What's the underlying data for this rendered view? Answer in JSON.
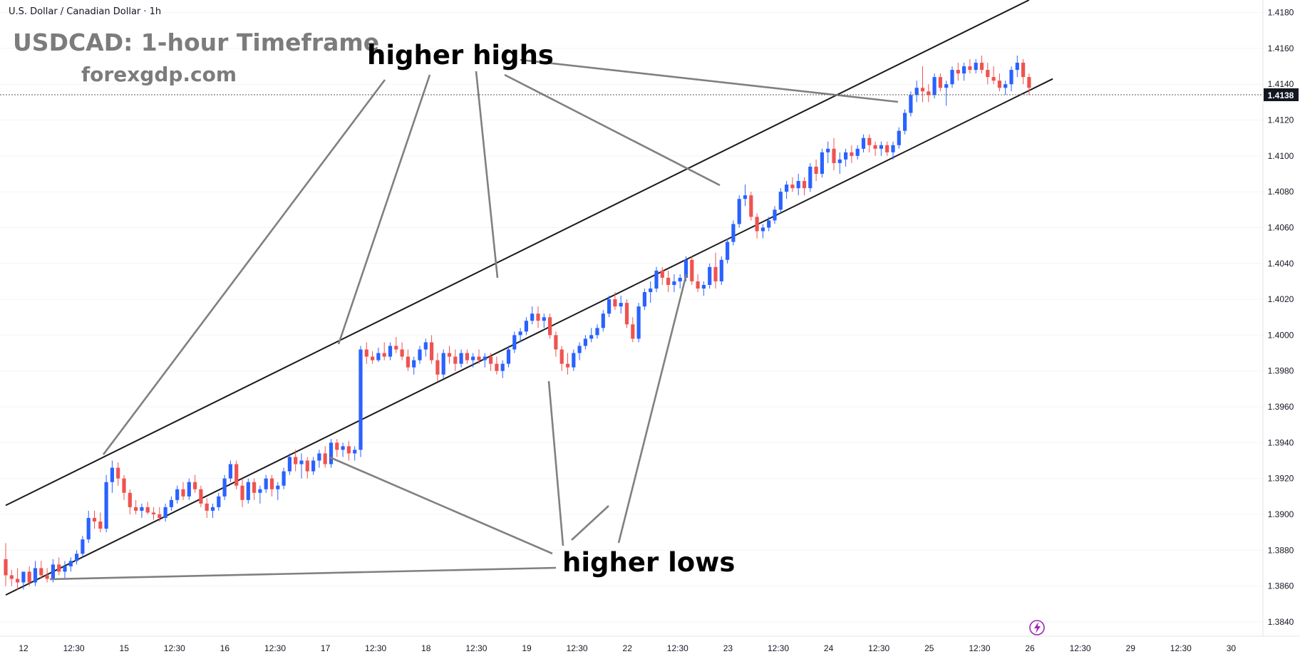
{
  "header": {
    "symbol_title": "U.S. Dollar / Canadian Dollar · 1h",
    "main_title": "USDCAD: 1-hour Timeframe",
    "website": "forexgdp.com"
  },
  "annotations": {
    "higher_highs": "higher highs",
    "higher_lows": "higher lows"
  },
  "chart_data": {
    "type": "candlestick",
    "y_axis_ticks": [
      "1.4180",
      "1.4160",
      "1.4140",
      "1.4120",
      "1.4100",
      "1.4080",
      "1.4060",
      "1.4040",
      "1.4020",
      "1.4000",
      "1.3980",
      "1.3960",
      "1.3940",
      "1.3920",
      "1.3900",
      "1.3880",
      "1.3860",
      "1.3840"
    ],
    "ylim": [
      1.3832,
      1.4187
    ],
    "current_price": "1.4138",
    "x_axis_labels": [
      "12",
      "12:30",
      "15",
      "12:30",
      "16",
      "12:30",
      "17",
      "12:30",
      "18",
      "12:30",
      "19",
      "12:30",
      "22",
      "12:30",
      "23",
      "12:30",
      "24",
      "12:30",
      "25",
      "12:30",
      "26",
      "12:30",
      "29",
      "12:30",
      "30"
    ],
    "channel_upper": [
      [
        0.0,
        1.3905
      ],
      [
        86.5,
        1.4187
      ]
    ],
    "channel_lower": [
      [
        0.0,
        1.3855
      ],
      [
        88.5,
        1.4143
      ]
    ],
    "colors": {
      "up": "#2962ff",
      "down": "#ef5350",
      "channel": "#1a1a1a",
      "pointer": "#808080",
      "price_label_bg": "#131722"
    },
    "candles": [
      [
        0.0,
        1.3875,
        1.3884,
        1.386,
        1.3866
      ],
      [
        0.5,
        1.3866,
        1.3869,
        1.386,
        1.3864
      ],
      [
        1.0,
        1.3864,
        1.387,
        1.3858,
        1.3862
      ],
      [
        1.5,
        1.3862,
        1.3866,
        1.3858,
        1.3868
      ],
      [
        2.0,
        1.3868,
        1.3871,
        1.386,
        1.3862
      ],
      [
        2.5,
        1.3862,
        1.3874,
        1.386,
        1.387
      ],
      [
        3.0,
        1.387,
        1.3874,
        1.3864,
        1.3866
      ],
      [
        3.5,
        1.3866,
        1.387,
        1.3862,
        1.3864
      ],
      [
        4.0,
        1.3864,
        1.3875,
        1.3862,
        1.3872
      ],
      [
        4.5,
        1.3872,
        1.3876,
        1.3866,
        1.3868
      ],
      [
        5.0,
        1.3868,
        1.3874,
        1.3864,
        1.3871
      ],
      [
        5.5,
        1.3871,
        1.3876,
        1.3868,
        1.3874
      ],
      [
        6.0,
        1.3874,
        1.388,
        1.3872,
        1.3878
      ],
      [
        6.5,
        1.3878,
        1.3888,
        1.3876,
        1.3886
      ],
      [
        7.0,
        1.3886,
        1.3902,
        1.3884,
        1.3898
      ],
      [
        7.5,
        1.3898,
        1.3902,
        1.3892,
        1.3896
      ],
      [
        8.0,
        1.3896,
        1.3901,
        1.389,
        1.3892
      ],
      [
        8.5,
        1.3892,
        1.3922,
        1.389,
        1.3918
      ],
      [
        9.0,
        1.3918,
        1.393,
        1.3912,
        1.3926
      ],
      [
        9.5,
        1.3926,
        1.3929,
        1.3916,
        1.392
      ],
      [
        10.0,
        1.392,
        1.3922,
        1.3908,
        1.3912
      ],
      [
        10.5,
        1.3912,
        1.3914,
        1.39,
        1.3904
      ],
      [
        11.0,
        1.3904,
        1.3908,
        1.39,
        1.3902
      ],
      [
        11.5,
        1.3902,
        1.3906,
        1.3898,
        1.3904
      ],
      [
        12.0,
        1.3904,
        1.3907,
        1.39,
        1.3901
      ],
      [
        12.5,
        1.3901,
        1.3904,
        1.3897,
        1.39
      ],
      [
        13.0,
        1.39,
        1.3904,
        1.3896,
        1.3898
      ],
      [
        13.5,
        1.3898,
        1.3906,
        1.3896,
        1.3904
      ],
      [
        14.0,
        1.3904,
        1.391,
        1.3902,
        1.3908
      ],
      [
        14.5,
        1.3908,
        1.3916,
        1.3906,
        1.3914
      ],
      [
        15.0,
        1.3914,
        1.3918,
        1.3908,
        1.391
      ],
      [
        15.5,
        1.391,
        1.392,
        1.3908,
        1.3918
      ],
      [
        16.0,
        1.3918,
        1.3922,
        1.3912,
        1.3914
      ],
      [
        16.5,
        1.3914,
        1.3916,
        1.3904,
        1.3906
      ],
      [
        17.0,
        1.3906,
        1.3909,
        1.3898,
        1.3902
      ],
      [
        17.5,
        1.3902,
        1.3906,
        1.3898,
        1.3904
      ],
      [
        18.0,
        1.3904,
        1.3912,
        1.3902,
        1.391
      ],
      [
        18.5,
        1.391,
        1.3922,
        1.3908,
        1.392
      ],
      [
        19.0,
        1.392,
        1.393,
        1.3918,
        1.3928
      ],
      [
        19.5,
        1.3928,
        1.393,
        1.3914,
        1.3916
      ],
      [
        20.0,
        1.3916,
        1.392,
        1.3904,
        1.3908
      ],
      [
        20.5,
        1.3908,
        1.392,
        1.3906,
        1.3918
      ],
      [
        21.0,
        1.3918,
        1.392,
        1.3908,
        1.3912
      ],
      [
        21.5,
        1.3912,
        1.3916,
        1.3906,
        1.3914
      ],
      [
        22.0,
        1.3914,
        1.3922,
        1.3912,
        1.392
      ],
      [
        22.5,
        1.392,
        1.3922,
        1.391,
        1.3914
      ],
      [
        23.0,
        1.3914,
        1.3918,
        1.3908,
        1.3916
      ],
      [
        23.5,
        1.3916,
        1.3926,
        1.3914,
        1.3924
      ],
      [
        24.0,
        1.3924,
        1.3934,
        1.3922,
        1.3932
      ],
      [
        24.5,
        1.3932,
        1.3936,
        1.3924,
        1.3928
      ],
      [
        25.0,
        1.3928,
        1.3934,
        1.392,
        1.393
      ],
      [
        25.5,
        1.393,
        1.3932,
        1.392,
        1.3924
      ],
      [
        26.0,
        1.3924,
        1.3932,
        1.3922,
        1.393
      ],
      [
        26.5,
        1.393,
        1.3936,
        1.3926,
        1.3934
      ],
      [
        27.0,
        1.3934,
        1.3938,
        1.3926,
        1.3928
      ],
      [
        27.5,
        1.3928,
        1.3942,
        1.3926,
        1.394
      ],
      [
        28.0,
        1.394,
        1.3942,
        1.3932,
        1.3936
      ],
      [
        28.5,
        1.3936,
        1.394,
        1.3932,
        1.3938
      ],
      [
        29.0,
        1.3938,
        1.3941,
        1.393,
        1.3934
      ],
      [
        29.5,
        1.3934,
        1.3938,
        1.393,
        1.3936
      ],
      [
        30.0,
        1.3936,
        1.3994,
        1.3932,
        1.3992
      ],
      [
        30.5,
        1.3992,
        1.3996,
        1.3984,
        1.3988
      ],
      [
        31.0,
        1.3988,
        1.3991,
        1.3984,
        1.3986
      ],
      [
        31.5,
        1.3986,
        1.3993,
        1.3985,
        1.399
      ],
      [
        32.0,
        1.399,
        1.3996,
        1.3986,
        1.3988
      ],
      [
        32.5,
        1.3988,
        1.3996,
        1.3986,
        1.3994
      ],
      [
        33.0,
        1.3994,
        1.3999,
        1.399,
        1.3992
      ],
      [
        33.5,
        1.3992,
        1.3996,
        1.3986,
        1.3988
      ],
      [
        34.0,
        1.3988,
        1.3992,
        1.398,
        1.3982
      ],
      [
        34.5,
        1.3982,
        1.3988,
        1.3978,
        1.3986
      ],
      [
        35.0,
        1.3986,
        1.3994,
        1.3984,
        1.3992
      ],
      [
        35.5,
        1.3992,
        1.3998,
        1.3988,
        1.3996
      ],
      [
        36.0,
        1.3996,
        1.4,
        1.3984,
        1.3986
      ],
      [
        36.5,
        1.3986,
        1.399,
        1.3974,
        1.3978
      ],
      [
        37.0,
        1.3978,
        1.3992,
        1.3976,
        1.399
      ],
      [
        37.5,
        1.399,
        1.3994,
        1.3984,
        1.3988
      ],
      [
        38.0,
        1.3988,
        1.3992,
        1.398,
        1.3984
      ],
      [
        38.5,
        1.3984,
        1.3992,
        1.3982,
        1.399
      ],
      [
        39.0,
        1.399,
        1.3992,
        1.3984,
        1.3986
      ],
      [
        39.5,
        1.3986,
        1.399,
        1.3982,
        1.3988
      ],
      [
        40.0,
        1.3988,
        1.3992,
        1.3984,
        1.3986
      ],
      [
        40.5,
        1.3986,
        1.399,
        1.3982,
        1.3988
      ],
      [
        41.0,
        1.3988,
        1.399,
        1.398,
        1.3984
      ],
      [
        41.5,
        1.3984,
        1.3988,
        1.3978,
        1.398
      ],
      [
        42.0,
        1.398,
        1.3986,
        1.3976,
        1.3984
      ],
      [
        42.5,
        1.3984,
        1.3994,
        1.3982,
        1.3992
      ],
      [
        43.0,
        1.3992,
        1.4002,
        1.399,
        1.4
      ],
      [
        43.5,
        1.4,
        1.4004,
        1.3996,
        1.4002
      ],
      [
        44.0,
        1.4002,
        1.401,
        1.4,
        1.4008
      ],
      [
        44.5,
        1.4008,
        1.4016,
        1.4006,
        1.4012
      ],
      [
        45.0,
        1.4012,
        1.4016,
        1.4004,
        1.4008
      ],
      [
        45.5,
        1.4008,
        1.4012,
        1.4004,
        1.401
      ],
      [
        46.0,
        1.401,
        1.4012,
        1.3998,
        1.4
      ],
      [
        46.5,
        1.4,
        1.4002,
        1.3988,
        1.3992
      ],
      [
        47.0,
        1.3992,
        1.3994,
        1.398,
        1.3984
      ],
      [
        47.5,
        1.3984,
        1.399,
        1.3978,
        1.3982
      ],
      [
        48.0,
        1.3982,
        1.3992,
        1.398,
        1.399
      ],
      [
        48.5,
        1.399,
        1.3996,
        1.3986,
        1.3994
      ],
      [
        49.0,
        1.3994,
        1.4,
        1.3992,
        1.3998
      ],
      [
        49.5,
        1.3998,
        1.4004,
        1.3996,
        1.4
      ],
      [
        50.0,
        1.4,
        1.4006,
        1.3998,
        1.4004
      ],
      [
        50.5,
        1.4004,
        1.4014,
        1.4002,
        1.4012
      ],
      [
        51.0,
        1.4012,
        1.4022,
        1.401,
        1.402
      ],
      [
        51.5,
        1.402,
        1.4024,
        1.4014,
        1.4016
      ],
      [
        52.0,
        1.4016,
        1.4022,
        1.4012,
        1.4018
      ],
      [
        52.5,
        1.4018,
        1.402,
        1.4004,
        1.4006
      ],
      [
        53.0,
        1.4006,
        1.401,
        1.3996,
        1.3998
      ],
      [
        53.5,
        1.3998,
        1.4018,
        1.3996,
        1.4016
      ],
      [
        54.0,
        1.4016,
        1.4026,
        1.4014,
        1.4024
      ],
      [
        54.5,
        1.4024,
        1.403,
        1.4018,
        1.4026
      ],
      [
        55.0,
        1.4026,
        1.4038,
        1.4024,
        1.4036
      ],
      [
        55.5,
        1.4036,
        1.4038,
        1.4028,
        1.4032
      ],
      [
        56.0,
        1.4032,
        1.4036,
        1.4024,
        1.4028
      ],
      [
        56.5,
        1.4028,
        1.4034,
        1.4024,
        1.403
      ],
      [
        57.0,
        1.403,
        1.4034,
        1.4026,
        1.4032
      ],
      [
        57.5,
        1.4032,
        1.4044,
        1.403,
        1.4042
      ],
      [
        58.0,
        1.4042,
        1.4044,
        1.4028,
        1.403
      ],
      [
        58.5,
        1.403,
        1.4034,
        1.4024,
        1.4026
      ],
      [
        59.0,
        1.4026,
        1.403,
        1.4022,
        1.4028
      ],
      [
        59.5,
        1.4028,
        1.404,
        1.4026,
        1.4038
      ],
      [
        60.0,
        1.4038,
        1.4046,
        1.4026,
        1.403
      ],
      [
        60.5,
        1.403,
        1.4044,
        1.4028,
        1.4042
      ],
      [
        61.0,
        1.4042,
        1.4054,
        1.404,
        1.4052
      ],
      [
        61.5,
        1.4052,
        1.4064,
        1.405,
        1.4062
      ],
      [
        62.0,
        1.4062,
        1.4078,
        1.406,
        1.4076
      ],
      [
        62.5,
        1.4076,
        1.4084,
        1.4072,
        1.4078
      ],
      [
        63.0,
        1.4078,
        1.408,
        1.4064,
        1.4066
      ],
      [
        63.5,
        1.4066,
        1.4068,
        1.4054,
        1.4058
      ],
      [
        64.0,
        1.4058,
        1.4062,
        1.4054,
        1.406
      ],
      [
        64.5,
        1.406,
        1.4066,
        1.4058,
        1.4064
      ],
      [
        65.0,
        1.4064,
        1.4072,
        1.4062,
        1.407
      ],
      [
        65.5,
        1.407,
        1.4082,
        1.4068,
        1.408
      ],
      [
        66.0,
        1.408,
        1.4086,
        1.4076,
        1.4084
      ],
      [
        66.5,
        1.4084,
        1.4088,
        1.408,
        1.4082
      ],
      [
        67.0,
        1.4082,
        1.409,
        1.4078,
        1.4086
      ],
      [
        67.5,
        1.4086,
        1.4088,
        1.4078,
        1.4082
      ],
      [
        68.0,
        1.4082,
        1.4096,
        1.408,
        1.4094
      ],
      [
        68.5,
        1.4094,
        1.4098,
        1.4086,
        1.409
      ],
      [
        69.0,
        1.409,
        1.4104,
        1.4088,
        1.4102
      ],
      [
        69.5,
        1.4102,
        1.4108,
        1.4096,
        1.4104
      ],
      [
        70.0,
        1.4104,
        1.411,
        1.4092,
        1.4096
      ],
      [
        70.5,
        1.4096,
        1.4102,
        1.409,
        1.4098
      ],
      [
        71.0,
        1.4098,
        1.4104,
        1.4094,
        1.4102
      ],
      [
        71.5,
        1.4102,
        1.4106,
        1.4096,
        1.41
      ],
      [
        72.0,
        1.41,
        1.4106,
        1.4098,
        1.4104
      ],
      [
        72.5,
        1.4104,
        1.4112,
        1.4102,
        1.411
      ],
      [
        73.0,
        1.411,
        1.4112,
        1.4102,
        1.4106
      ],
      [
        73.5,
        1.4106,
        1.4108,
        1.41,
        1.4104
      ],
      [
        74.0,
        1.4104,
        1.4108,
        1.41,
        1.4106
      ],
      [
        74.5,
        1.4106,
        1.4108,
        1.41,
        1.4102
      ],
      [
        75.0,
        1.4102,
        1.4108,
        1.4098,
        1.4106
      ],
      [
        75.5,
        1.4106,
        1.4116,
        1.4104,
        1.4114
      ],
      [
        76.0,
        1.4114,
        1.4126,
        1.4112,
        1.4124
      ],
      [
        76.5,
        1.4124,
        1.4136,
        1.4122,
        1.4134
      ],
      [
        77.0,
        1.4134,
        1.4142,
        1.413,
        1.4138
      ],
      [
        77.5,
        1.4138,
        1.415,
        1.413,
        1.4136
      ],
      [
        78.0,
        1.4136,
        1.414,
        1.413,
        1.4134
      ],
      [
        78.5,
        1.4134,
        1.4146,
        1.4132,
        1.4144
      ],
      [
        79.0,
        1.4144,
        1.4146,
        1.4136,
        1.4138
      ],
      [
        79.5,
        1.4138,
        1.4142,
        1.4128,
        1.414
      ],
      [
        80.0,
        1.414,
        1.415,
        1.4138,
        1.4148
      ],
      [
        80.5,
        1.4148,
        1.4152,
        1.4142,
        1.4146
      ],
      [
        81.0,
        1.4146,
        1.4152,
        1.4142,
        1.415
      ],
      [
        81.5,
        1.415,
        1.4154,
        1.4146,
        1.4148
      ],
      [
        82.0,
        1.4148,
        1.4154,
        1.4146,
        1.4152
      ],
      [
        82.5,
        1.4152,
        1.4156,
        1.4146,
        1.4148
      ],
      [
        83.0,
        1.4148,
        1.4152,
        1.414,
        1.4144
      ],
      [
        83.5,
        1.4144,
        1.415,
        1.414,
        1.4142
      ],
      [
        84.0,
        1.4142,
        1.4146,
        1.4136,
        1.4138
      ],
      [
        84.5,
        1.4138,
        1.4142,
        1.4134,
        1.414
      ],
      [
        85.0,
        1.414,
        1.415,
        1.4136,
        1.4148
      ],
      [
        85.5,
        1.4148,
        1.4156,
        1.4144,
        1.4152
      ],
      [
        86.0,
        1.4152,
        1.4154,
        1.414,
        1.4144
      ],
      [
        86.5,
        1.4144,
        1.4146,
        1.4134,
        1.4138
      ]
    ]
  }
}
